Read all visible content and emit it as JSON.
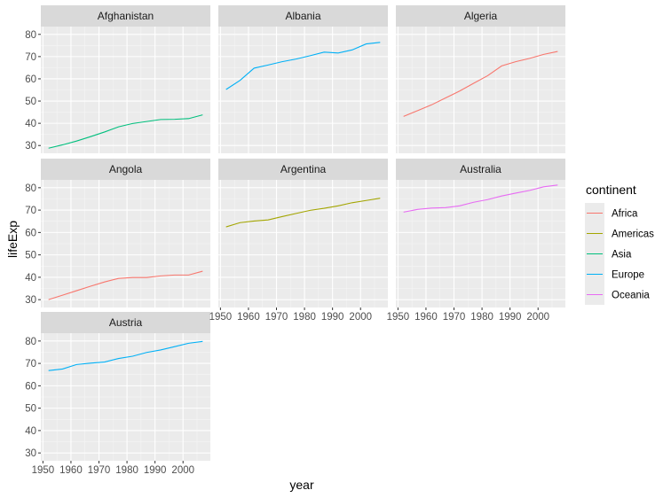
{
  "chart_data": {
    "type": "line",
    "facet_by": "country",
    "xlabel": "year",
    "ylabel": "lifeExp",
    "x_ticks": [
      1950,
      1960,
      1970,
      1980,
      1990,
      2000
    ],
    "y_ticks": [
      30,
      40,
      50,
      60,
      70,
      80
    ],
    "x_range": [
      1949.25,
      2009.75
    ],
    "y_range": [
      26.5,
      83.5
    ],
    "legend": {
      "title": "continent",
      "position": "right",
      "entries": [
        {
          "name": "Africa",
          "color": "#F8766D"
        },
        {
          "name": "Americas",
          "color": "#A3A500"
        },
        {
          "name": "Asia",
          "color": "#00BF7D"
        },
        {
          "name": "Europe",
          "color": "#00B0F6"
        },
        {
          "name": "Oceania",
          "color": "#E76BF3"
        }
      ]
    },
    "x": [
      1952,
      1957,
      1962,
      1967,
      1972,
      1977,
      1982,
      1987,
      1992,
      1997,
      2002,
      2007
    ],
    "series": [
      {
        "name": "Afghanistan",
        "continent": "Asia",
        "values": [
          28.8,
          30.3,
          32.0,
          34.0,
          36.1,
          38.4,
          39.9,
          40.8,
          41.7,
          41.8,
          42.1,
          43.8
        ]
      },
      {
        "name": "Albania",
        "continent": "Europe",
        "values": [
          55.2,
          59.3,
          64.8,
          66.2,
          67.7,
          68.9,
          70.4,
          72.0,
          71.6,
          73.0,
          75.7,
          76.4
        ]
      },
      {
        "name": "Algeria",
        "continent": "Africa",
        "values": [
          43.1,
          45.7,
          48.3,
          51.4,
          54.5,
          58.0,
          61.4,
          65.8,
          67.7,
          69.2,
          71.0,
          72.3
        ]
      },
      {
        "name": "Angola",
        "continent": "Africa",
        "values": [
          30.0,
          32.0,
          34.0,
          36.0,
          37.9,
          39.5,
          39.9,
          39.9,
          40.6,
          41.0,
          41.0,
          42.7
        ]
      },
      {
        "name": "Argentina",
        "continent": "Americas",
        "values": [
          62.5,
          64.4,
          65.1,
          65.6,
          67.1,
          68.5,
          69.9,
          70.8,
          71.9,
          73.3,
          74.3,
          75.3
        ]
      },
      {
        "name": "Australia",
        "continent": "Oceania",
        "values": [
          69.1,
          70.3,
          70.9,
          71.1,
          71.9,
          73.5,
          74.7,
          76.3,
          77.6,
          78.8,
          80.4,
          81.2
        ]
      },
      {
        "name": "Austria",
        "continent": "Europe",
        "values": [
          66.8,
          67.5,
          69.5,
          70.1,
          70.6,
          72.2,
          73.2,
          74.9,
          76.0,
          77.5,
          79.0,
          79.8
        ]
      }
    ]
  }
}
